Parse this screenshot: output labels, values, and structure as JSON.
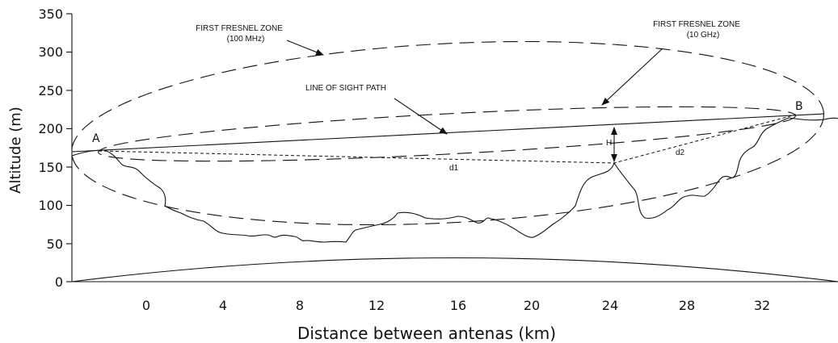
{
  "axes": {
    "ylabel": "Altitude (m)",
    "xlabel": "Distance between antenas (km)",
    "y_ticks": [
      "0",
      "50",
      "100",
      "150",
      "200",
      "250",
      "300",
      "350"
    ],
    "x_ticks": [
      "0",
      "4",
      "8",
      "12",
      "16",
      "20",
      "24",
      "28",
      "32"
    ]
  },
  "labels": {
    "fresnel_100mhz_line1": "FIRST FRESNEL ZONE",
    "fresnel_100mhz_line2": "(100 MHz)",
    "fresnel_10ghz_line1": "FIRST FRESNEL ZONE",
    "fresnel_10ghz_line2": "(10 GHz)",
    "line_of_sight": "LINE OF SIGHT PATH",
    "point_a": "A",
    "point_b": "B",
    "height": "H",
    "d1": "d1",
    "d2": "d2"
  }
}
